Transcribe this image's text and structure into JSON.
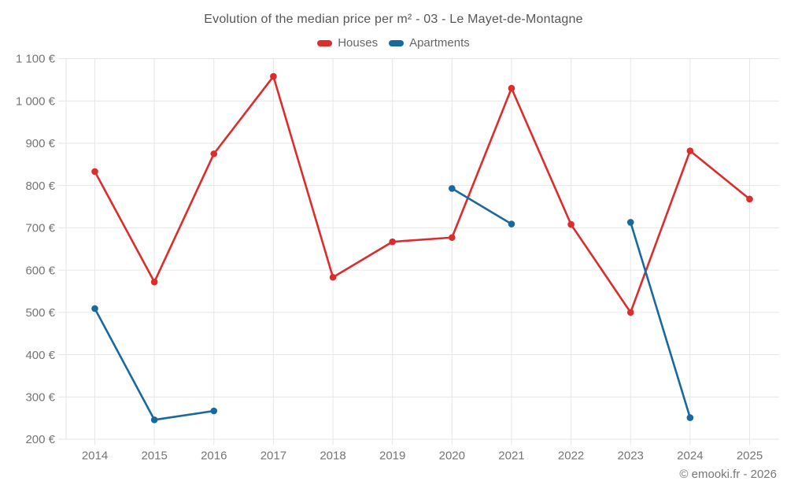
{
  "title": "Evolution of the median price per m² - 03 - Le Mayet-de-Montagne",
  "footer": "© emooki.fr - 2026",
  "chart_data": {
    "type": "line",
    "x": [
      2014,
      2015,
      2016,
      2017,
      2018,
      2019,
      2020,
      2021,
      2022,
      2023,
      2024,
      2025
    ],
    "xtick_labels": [
      "2014",
      "2015",
      "2016",
      "2017",
      "2018",
      "2019",
      "2020",
      "2021",
      "2022",
      "2023",
      "2024",
      "2025"
    ],
    "series": [
      {
        "name": "Houses",
        "color": "#dc2c2c",
        "values": [
          833,
          572,
          875,
          1058,
          583,
          667,
          677,
          1030,
          708,
          500,
          882,
          768
        ]
      },
      {
        "name": "Apartments",
        "color": "#17699f",
        "values": [
          509,
          246,
          267,
          null,
          null,
          null,
          793,
          709,
          null,
          713,
          251,
          null
        ]
      }
    ],
    "ylim": [
      200,
      1100
    ],
    "ytick_step": 100,
    "ytick_values": [
      1100,
      1000,
      900,
      800,
      700,
      600,
      500,
      400,
      300,
      200
    ],
    "ytick_labels": [
      "1 100 €",
      "1 000 €",
      "900 €",
      "800 €",
      "700 €",
      "600 €",
      "500 €",
      "400 €",
      "300 €",
      "200 €"
    ],
    "currency": "€",
    "grid": true,
    "grid_color": "#e6e6e6",
    "legend_position": "top",
    "marker": "circle"
  }
}
